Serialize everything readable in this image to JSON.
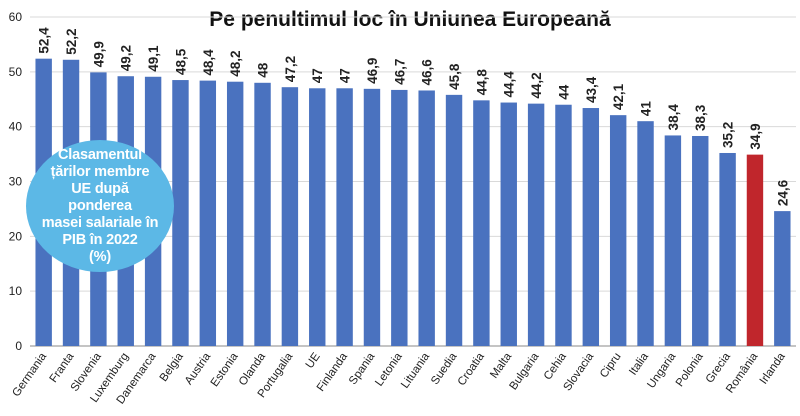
{
  "chart_data": {
    "type": "bar",
    "title": "Pe penultimul loc în Uniunea Europeană",
    "categories": [
      "Germania",
      "Franta",
      "Slovenia",
      "Luxemburg",
      "Danemarca",
      "Belgia",
      "Austria",
      "Estonia",
      "Olanda",
      "Portugalia",
      "UE",
      "Finlanda",
      "Spania",
      "Letonia",
      "Lituania",
      "Suedia",
      "Croatia",
      "Malta",
      "Bulgaria",
      "Cehia",
      "Slovacia",
      "Cipru",
      "Italia",
      "Ungaria",
      "Polonia",
      "Grecia",
      "România",
      "Irlanda"
    ],
    "values": [
      52.4,
      52.2,
      49.9,
      49.2,
      49.1,
      48.5,
      48.4,
      48.2,
      48,
      47.2,
      47,
      47,
      46.9,
      46.7,
      46.6,
      45.8,
      44.8,
      44.4,
      44.2,
      44,
      43.4,
      42.1,
      41,
      38.4,
      38.3,
      35.2,
      34.9,
      24.6
    ],
    "data_labels": [
      "52,4",
      "52,2",
      "49,9",
      "49,2",
      "49,1",
      "48,5",
      "48,4",
      "48,2",
      "48",
      "47,2",
      "47",
      "47",
      "46,9",
      "46,7",
      "46,6",
      "45,8",
      "44,8",
      "44,4",
      "44,2",
      "44",
      "43,4",
      "42,1",
      "41",
      "38,4",
      "38,3",
      "35,2",
      "34,9",
      "24,6"
    ],
    "ylim": [
      0,
      60
    ],
    "yticks": [
      0,
      10,
      20,
      30,
      40,
      50,
      60
    ],
    "grid": true,
    "colors": {
      "bar": "#4a72bf",
      "highlight": "#c0262c",
      "highlight_category": "România"
    }
  },
  "callout": {
    "text": "Clasamentul\nțărilor membre\nUE după ponderea\nmasei salariale în\nPIB în 2022\n(%)",
    "color": "#5cb8e6"
  }
}
